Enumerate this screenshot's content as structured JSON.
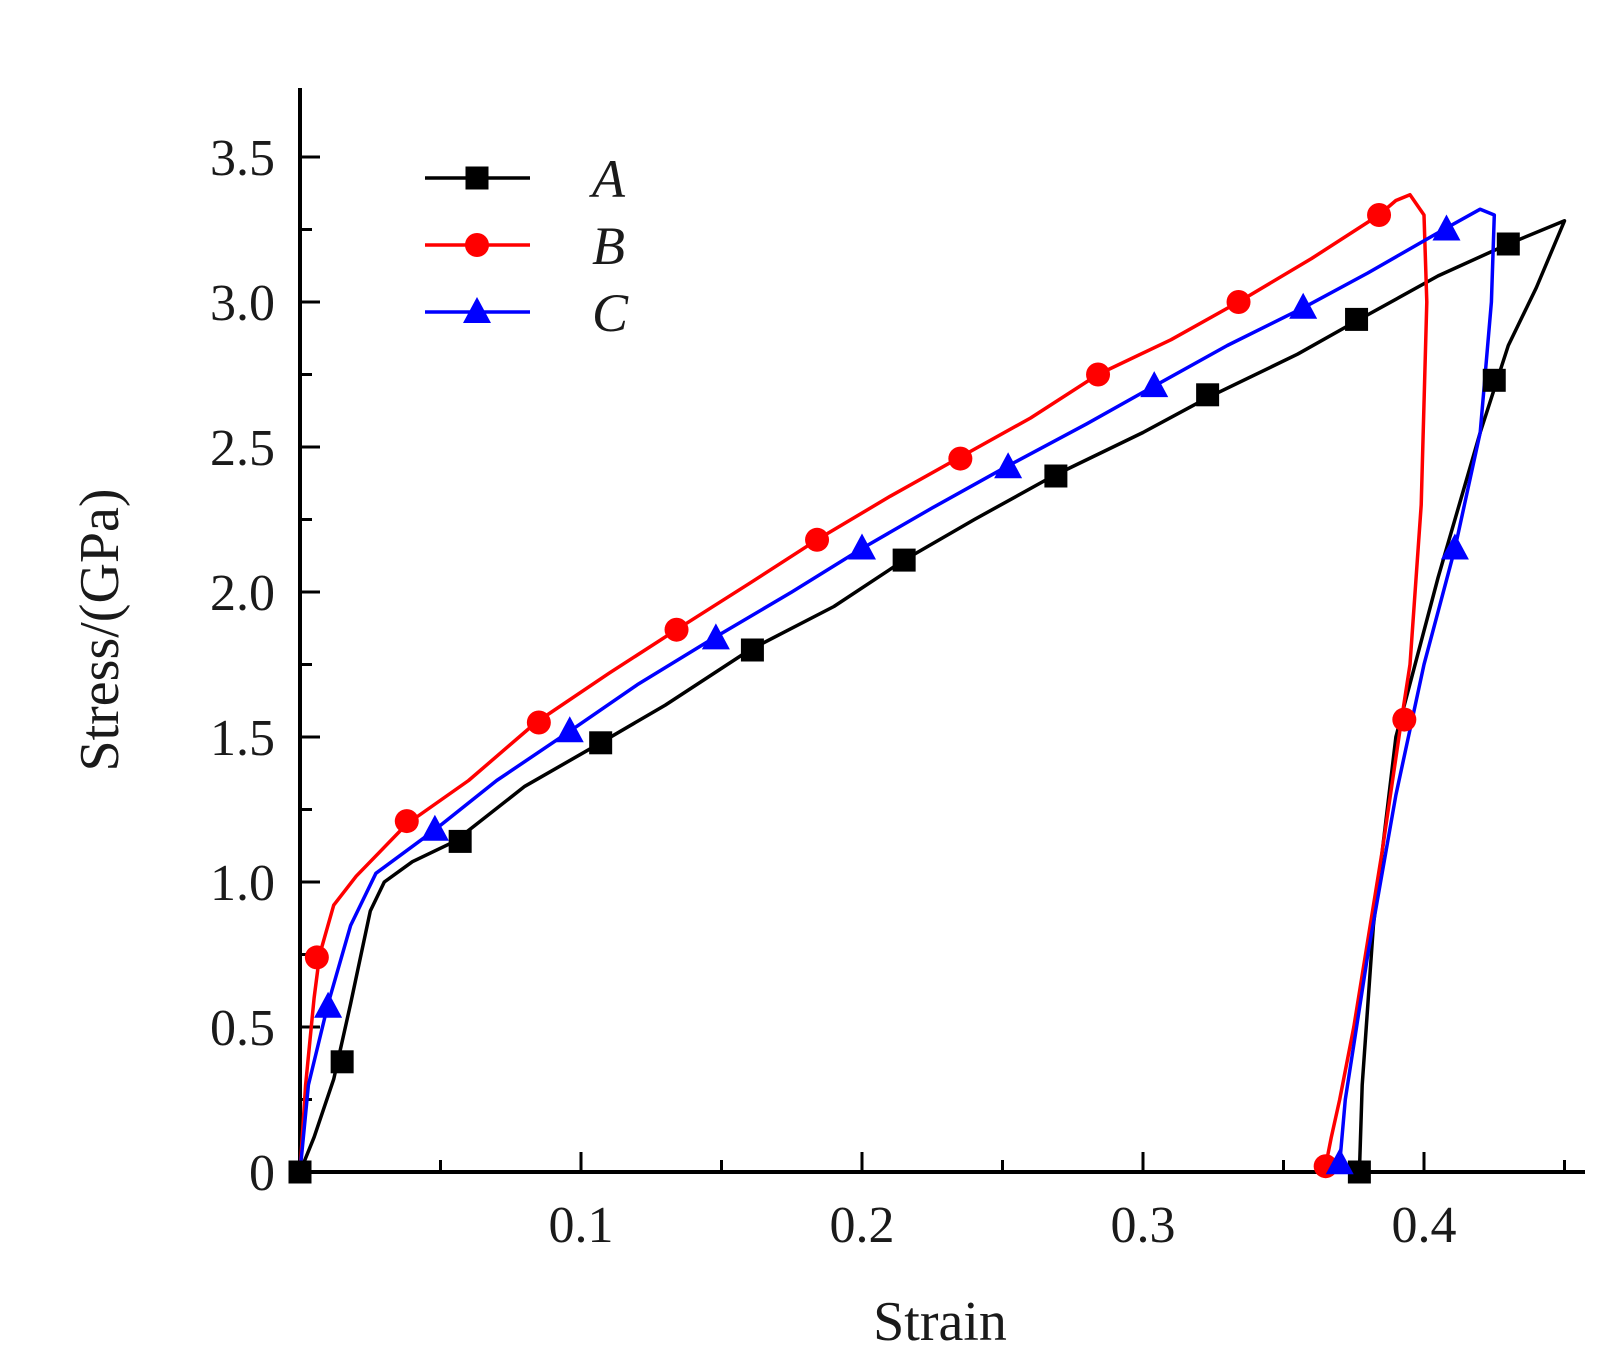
{
  "chart_data": {
    "type": "line",
    "xlabel": "Strain",
    "ylabel": "Stress/(GPa)",
    "xlim": [
      0,
      0.45
    ],
    "ylim": [
      0,
      3.75
    ],
    "x_ticks": [
      0.1,
      0.2,
      0.3,
      0.4
    ],
    "x_tick_labels": [
      "0.1",
      "0.2",
      "0.3",
      "0.4"
    ],
    "y_ticks": [
      0,
      0.5,
      1.0,
      1.5,
      2.0,
      2.5,
      3.0,
      3.5
    ],
    "y_tick_labels": [
      "0",
      "0.5",
      "1.0",
      "1.5",
      "2.0",
      "2.5",
      "3.0",
      "3.5"
    ],
    "grid": false,
    "legend_position": "top-left",
    "series": [
      {
        "name": "A",
        "color": "#000000",
        "marker": "square",
        "points": [
          [
            0,
            0
          ],
          [
            0.005,
            0.12
          ],
          [
            0.012,
            0.32
          ],
          [
            0.018,
            0.58
          ],
          [
            0.025,
            0.9
          ],
          [
            0.03,
            1.0
          ],
          [
            0.04,
            1.07
          ],
          [
            0.055,
            1.14
          ],
          [
            0.08,
            1.33
          ],
          [
            0.107,
            1.48
          ],
          [
            0.13,
            1.61
          ],
          [
            0.16,
            1.8
          ],
          [
            0.19,
            1.95
          ],
          [
            0.215,
            2.11
          ],
          [
            0.24,
            2.25
          ],
          [
            0.268,
            2.4
          ],
          [
            0.3,
            2.55
          ],
          [
            0.323,
            2.67
          ],
          [
            0.355,
            2.82
          ],
          [
            0.377,
            2.94
          ],
          [
            0.405,
            3.09
          ],
          [
            0.43,
            3.2
          ],
          [
            0.45,
            3.28
          ],
          [
            0.44,
            3.05
          ],
          [
            0.43,
            2.85
          ],
          [
            0.42,
            2.55
          ],
          [
            0.405,
            2.05
          ],
          [
            0.39,
            1.5
          ],
          [
            0.382,
            0.85
          ],
          [
            0.378,
            0.3
          ],
          [
            0.377,
            0
          ]
        ],
        "marker_points": [
          [
            0,
            0
          ],
          [
            0.015,
            0.38
          ],
          [
            0.057,
            1.14
          ],
          [
            0.107,
            1.48
          ],
          [
            0.161,
            1.8
          ],
          [
            0.215,
            2.11
          ],
          [
            0.269,
            2.4
          ],
          [
            0.323,
            2.68
          ],
          [
            0.376,
            2.94
          ],
          [
            0.43,
            3.2
          ],
          [
            0.425,
            2.73
          ],
          [
            0.377,
            0
          ]
        ]
      },
      {
        "name": "B",
        "color": "#ff0000",
        "marker": "circle",
        "points": [
          [
            0,
            0
          ],
          [
            0.002,
            0.3
          ],
          [
            0.005,
            0.6
          ],
          [
            0.007,
            0.75
          ],
          [
            0.012,
            0.92
          ],
          [
            0.02,
            1.02
          ],
          [
            0.038,
            1.2
          ],
          [
            0.06,
            1.35
          ],
          [
            0.084,
            1.55
          ],
          [
            0.11,
            1.72
          ],
          [
            0.134,
            1.87
          ],
          [
            0.16,
            2.03
          ],
          [
            0.184,
            2.18
          ],
          [
            0.21,
            2.33
          ],
          [
            0.234,
            2.46
          ],
          [
            0.26,
            2.6
          ],
          [
            0.284,
            2.75
          ],
          [
            0.31,
            2.87
          ],
          [
            0.334,
            3.0
          ],
          [
            0.36,
            3.15
          ],
          [
            0.384,
            3.3
          ],
          [
            0.39,
            3.35
          ],
          [
            0.395,
            3.37
          ],
          [
            0.4,
            3.3
          ],
          [
            0.401,
            3.0
          ],
          [
            0.399,
            2.3
          ],
          [
            0.395,
            1.75
          ],
          [
            0.392,
            1.56
          ],
          [
            0.385,
            1.1
          ],
          [
            0.375,
            0.5
          ],
          [
            0.37,
            0.25
          ],
          [
            0.367,
            0.12
          ],
          [
            0.365,
            0.02
          ]
        ],
        "marker_points": [
          [
            0.006,
            0.74
          ],
          [
            0.038,
            1.21
          ],
          [
            0.085,
            1.55
          ],
          [
            0.134,
            1.87
          ],
          [
            0.184,
            2.18
          ],
          [
            0.235,
            2.46
          ],
          [
            0.284,
            2.75
          ],
          [
            0.334,
            3.0
          ],
          [
            0.384,
            3.3
          ],
          [
            0.393,
            1.56
          ],
          [
            0.365,
            0.02
          ]
        ]
      },
      {
        "name": "C",
        "color": "#0000ff",
        "marker": "triangle",
        "points": [
          [
            0,
            0
          ],
          [
            0.003,
            0.3
          ],
          [
            0.01,
            0.58
          ],
          [
            0.018,
            0.85
          ],
          [
            0.027,
            1.03
          ],
          [
            0.048,
            1.18
          ],
          [
            0.07,
            1.35
          ],
          [
            0.096,
            1.52
          ],
          [
            0.12,
            1.68
          ],
          [
            0.147,
            1.84
          ],
          [
            0.175,
            2.0
          ],
          [
            0.2,
            2.15
          ],
          [
            0.225,
            2.29
          ],
          [
            0.251,
            2.43
          ],
          [
            0.28,
            2.58
          ],
          [
            0.304,
            2.71
          ],
          [
            0.33,
            2.85
          ],
          [
            0.357,
            2.98
          ],
          [
            0.38,
            3.1
          ],
          [
            0.407,
            3.25
          ],
          [
            0.42,
            3.32
          ],
          [
            0.425,
            3.3
          ],
          [
            0.424,
            3.0
          ],
          [
            0.42,
            2.55
          ],
          [
            0.411,
            2.15
          ],
          [
            0.4,
            1.75
          ],
          [
            0.39,
            1.3
          ],
          [
            0.38,
            0.75
          ],
          [
            0.372,
            0.25
          ],
          [
            0.37,
            0.03
          ]
        ],
        "marker_points": [
          [
            0.01,
            0.57
          ],
          [
            0.048,
            1.18
          ],
          [
            0.096,
            1.52
          ],
          [
            0.148,
            1.84
          ],
          [
            0.2,
            2.15
          ],
          [
            0.252,
            2.43
          ],
          [
            0.304,
            2.71
          ],
          [
            0.357,
            2.98
          ],
          [
            0.408,
            3.25
          ],
          [
            0.411,
            2.15
          ],
          [
            0.37,
            0.03
          ]
        ]
      }
    ]
  }
}
